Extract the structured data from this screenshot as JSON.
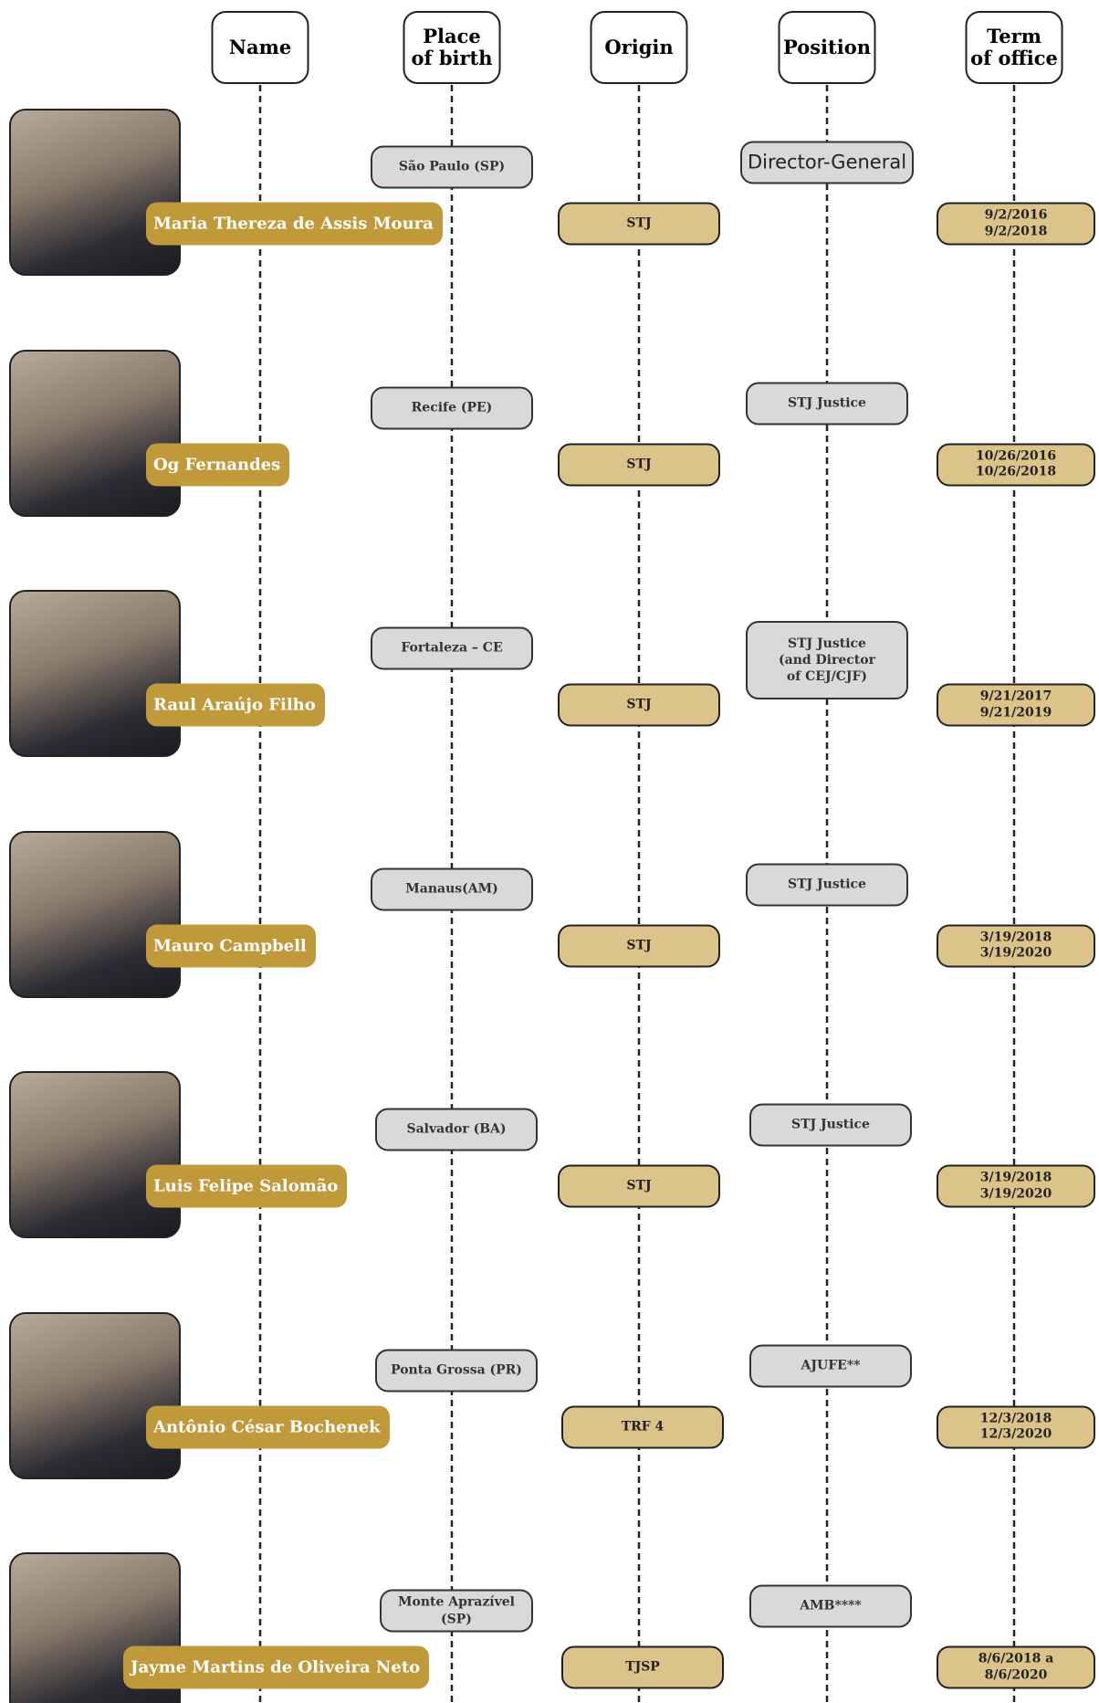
{
  "headers": [
    "Name",
    "Place\nof birth",
    "Origin",
    "Position",
    "Term\nof office"
  ],
  "rows": [
    {
      "name": "Maria Thereza de Assis Moura",
      "birthplace": "São Paulo (SP)",
      "origin": "STJ",
      "position": "Director-General",
      "term": [
        "9/2/2016",
        "9/2/2018"
      ]
    },
    {
      "name": "Og Fernandes",
      "birthplace": "Recife (PE)",
      "origin": "STJ",
      "position": "STJ Justice",
      "term": [
        "10/26/2016",
        "10/26/2018"
      ]
    },
    {
      "name": "Raul Araújo Filho",
      "birthplace": "Fortaleza – CE",
      "origin": "STJ",
      "position": "STJ Justice\n(and Director\nof CEJ/CJF)",
      "term": [
        "9/21/2017",
        "9/21/2019"
      ]
    },
    {
      "name": "Mauro Campbell",
      "birthplace": "Manaus(AM)",
      "origin": "STJ",
      "position": "STJ Justice",
      "term": [
        "3/19/2018",
        "3/19/2020"
      ]
    },
    {
      "name": "Luis Felipe Salomão",
      "birthplace": "Salvador (BA)",
      "origin": "STJ",
      "position": "STJ Justice",
      "term": [
        "3/19/2018",
        "3/19/2020"
      ]
    },
    {
      "name": "Antônio César Bochenek",
      "birthplace": "Ponta Grossa (PR)",
      "origin": "TRF 4",
      "position": "AJUFE**",
      "term": [
        "12/3/2018",
        "12/3/2020"
      ]
    },
    {
      "name": "Jayme Martins de Oliveira Neto",
      "birthplace": "Monte Aprazível (SP)",
      "origin": "TJSP",
      "position": "AMB****",
      "term": [
        "8/6/2018 a",
        "8/6/2020"
      ]
    }
  ]
}
